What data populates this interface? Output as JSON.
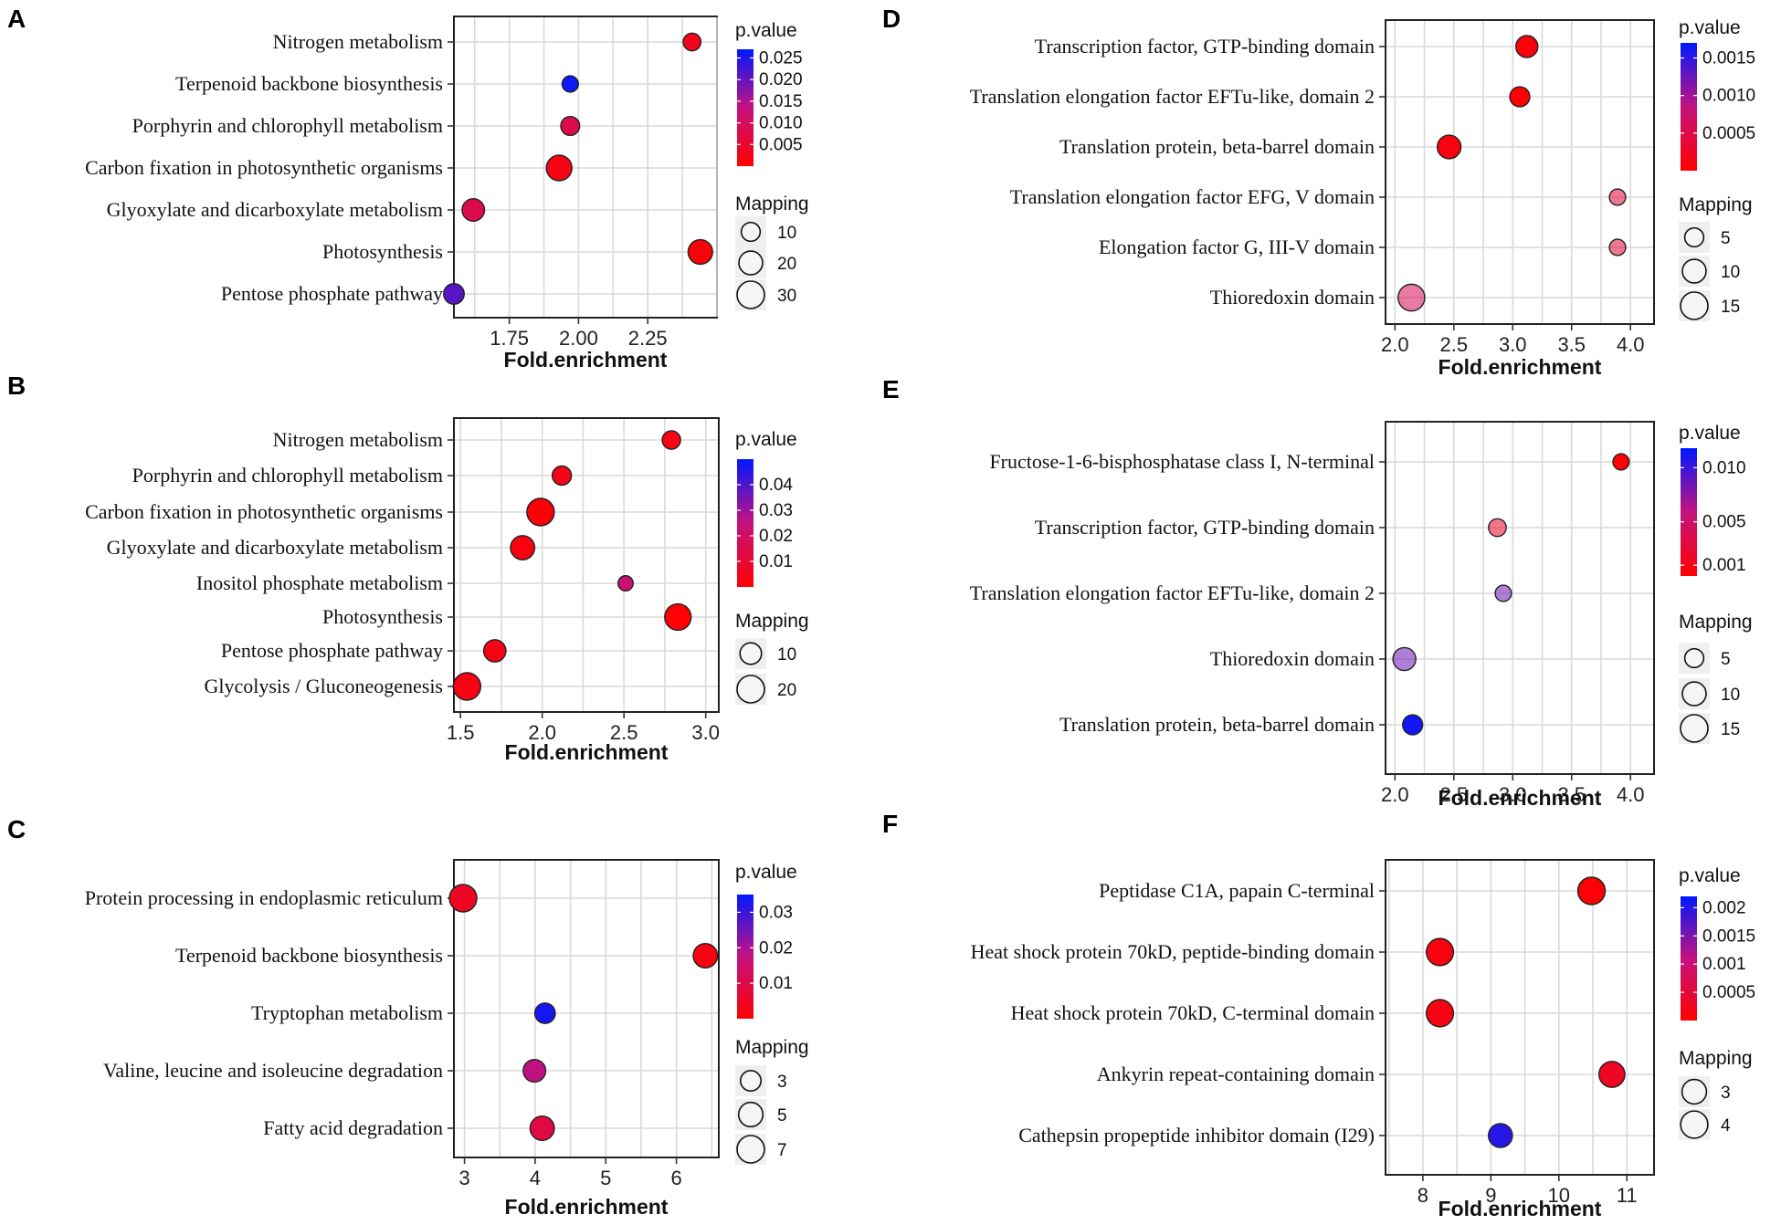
{
  "figure_title": "",
  "chart_data": [
    {
      "panel": "A",
      "type": "scatter",
      "xlabel": "Fold.enrichment",
      "ylabel": "",
      "xlim": [
        1.55,
        2.5
      ],
      "xticks": [
        1.75,
        2.0,
        2.25
      ],
      "xtick_labels": [
        "1.75",
        "2.00",
        "2.25"
      ],
      "categories": [
        "Nitrogen metabolism",
        "Terpenoid backbone biosynthesis",
        "Porphyrin and chlorophyll metabolism",
        "Carbon fixation in photosynthetic organisms",
        "Glyoxylate and dicarboxylate metabolism",
        "Photosynthesis",
        "Pentose phosphate pathway"
      ],
      "x": [
        2.41,
        1.97,
        1.97,
        1.93,
        1.62,
        2.44,
        1.55
      ],
      "mapping": [
        8,
        6,
        10,
        25,
        17,
        22,
        13
      ],
      "p_values": [
        0.003,
        0.026,
        0.008,
        0.002,
        0.008,
        0.001,
        0.021
      ],
      "color_legend": {
        "title": "p.value",
        "min": 0,
        "max": 0.027,
        "ticks": [
          0.025,
          0.02,
          0.015,
          0.01,
          0.005
        ],
        "tick_labels": [
          "0.025",
          "0.020",
          "0.015",
          "0.010",
          "0.005"
        ]
      },
      "size_legend": {
        "title": "Mapping",
        "ticks": [
          10,
          20,
          30
        ],
        "tick_labels": [
          "10",
          "20",
          "30"
        ]
      }
    },
    {
      "panel": "B",
      "type": "scatter",
      "xlabel": "Fold.enrichment",
      "ylabel": "",
      "xlim": [
        1.46,
        3.08
      ],
      "xticks": [
        1.5,
        2.0,
        2.5,
        3.0
      ],
      "xtick_labels": [
        "1.5",
        "2.0",
        "2.5",
        "3.0"
      ],
      "categories": [
        "Nitrogen metabolism",
        "Porphyrin and chlorophyll metabolism",
        "Carbon fixation in photosynthetic organisms",
        "Glyoxylate and dicarboxylate metabolism",
        "Inositol phosphate metabolism",
        "Photosynthesis",
        "Pentose phosphate pathway",
        "Glycolysis / Gluconeogenesis"
      ],
      "x": [
        2.79,
        2.12,
        1.99,
        1.88,
        2.51,
        2.83,
        1.71,
        1.54
      ],
      "mapping": [
        6,
        7,
        20,
        14,
        3,
        18,
        11,
        20
      ],
      "p_values": [
        0.004,
        0.005,
        0.002,
        0.003,
        0.022,
        0.001,
        0.004,
        0.004
      ],
      "color_legend": {
        "title": "p.value",
        "min": 0,
        "max": 0.05,
        "ticks": [
          0.04,
          0.03,
          0.02,
          0.01
        ],
        "tick_labels": [
          "0.04",
          "0.03",
          "0.02",
          "0.01"
        ]
      },
      "size_legend": {
        "title": "Mapping",
        "ticks": [
          10,
          20
        ],
        "tick_labels": [
          "10",
          "20"
        ]
      }
    },
    {
      "panel": "C",
      "type": "scatter",
      "xlabel": "Fold.enrichment",
      "ylabel": "",
      "xlim": [
        2.85,
        6.6
      ],
      "xticks": [
        3,
        4,
        5,
        6
      ],
      "xtick_labels": [
        "3",
        "4",
        "5",
        "6"
      ],
      "categories": [
        "Protein processing in endoplasmic reticulum",
        "Terpenoid backbone biosynthesis",
        "Tryptophan metabolism",
        "Valine, leucine and isoleucine degradation",
        "Fatty acid degradation"
      ],
      "x": [
        2.98,
        6.41,
        4.14,
        3.99,
        4.1
      ],
      "mapping": [
        7,
        5,
        3,
        4,
        5
      ],
      "p_values": [
        0.005,
        0.002,
        0.033,
        0.018,
        0.009
      ],
      "color_legend": {
        "title": "p.value",
        "min": 0,
        "max": 0.035,
        "ticks": [
          0.03,
          0.02,
          0.01
        ],
        "tick_labels": [
          "0.03",
          "0.02",
          "0.01"
        ]
      },
      "size_legend": {
        "title": "Mapping",
        "ticks": [
          3,
          5,
          7
        ],
        "tick_labels": [
          "3",
          "5",
          "7"
        ]
      }
    },
    {
      "panel": "D",
      "type": "scatter",
      "xlabel": "Fold.enrichment",
      "ylabel": "",
      "xlim": [
        1.92,
        4.2
      ],
      "xticks": [
        2.0,
        2.5,
        3.0,
        3.5,
        4.0
      ],
      "xtick_labels": [
        "2.0",
        "2.5",
        "3.0",
        "3.5",
        "4.0"
      ],
      "categories": [
        "Transcription factor, GTP-binding domain",
        "Translation elongation factor EFTu-like, domain 2",
        "Translation protein, beta-barrel domain",
        "Translation elongation factor EFG, V domain",
        "Elongation factor G, III-V domain",
        "Thioredoxin domain"
      ],
      "x": [
        3.12,
        3.06,
        2.46,
        3.89,
        3.89,
        2.14
      ],
      "mapping": [
        8,
        6,
        10,
        3,
        3,
        14
      ],
      "p_values": [
        8e-05,
        3e-05,
        0.0001,
        0.0004,
        0.0004,
        0.0006
      ],
      "color_legend": {
        "title": "p.value",
        "min": 0,
        "max": 0.0017,
        "ticks": [
          0.0015,
          0.001,
          0.0005
        ],
        "tick_labels": [
          "0.0015",
          "0.0010",
          "0.0005"
        ]
      },
      "size_legend": {
        "title": "Mapping",
        "ticks": [
          5,
          10,
          15
        ],
        "tick_labels": [
          "5",
          "10",
          "15"
        ]
      }
    },
    {
      "panel": "E",
      "type": "scatter",
      "xlabel": "Fold.enrichment",
      "ylabel": "",
      "xlim": [
        1.92,
        4.2
      ],
      "xticks": [
        2.0,
        2.5,
        3.0,
        3.5,
        4.0
      ],
      "xtick_labels": [
        "2.0",
        "2.5",
        "3.0",
        "3.5",
        "4.0"
      ],
      "categories": [
        "Fructose-1-6-bisphosphatase class I, N-terminal",
        "Transcription factor, GTP-binding domain",
        "Translation elongation factor EFTu-like, domain 2",
        "Thioredoxin domain",
        "Translation protein, beta-barrel domain"
      ],
      "x": [
        3.92,
        2.87,
        2.92,
        2.08,
        2.15
      ],
      "mapping": [
        3,
        4,
        3,
        9,
        6
      ],
      "p_values": [
        0.0002,
        0.002,
        0.0085,
        0.0085,
        0.0113
      ],
      "color_legend": {
        "title": "p.value",
        "min": 0,
        "max": 0.0118,
        "ticks": [
          0.01,
          0.005,
          0.001
        ],
        "tick_labels": [
          "0.010",
          "0.005",
          "0.001"
        ]
      },
      "size_legend": {
        "title": "Mapping",
        "ticks": [
          5,
          10,
          15
        ],
        "tick_labels": [
          "5",
          "10",
          "15"
        ]
      }
    },
    {
      "panel": "F",
      "type": "scatter",
      "xlabel": "Fold.enrichment",
      "ylabel": "",
      "xlim": [
        7.45,
        11.4
      ],
      "xticks": [
        8,
        9,
        10,
        11
      ],
      "xtick_labels": [
        "8",
        "9",
        "10",
        "11"
      ],
      "categories": [
        "Peptidase C1A, papain C-terminal",
        "Heat shock protein 70kD, peptide-binding domain",
        "Heat shock protein 70kD, C-terminal domain",
        "Ankyrin repeat-containing domain",
        "Cathepsin propeptide inhibitor domain (I29)"
      ],
      "x": [
        10.48,
        8.25,
        8.25,
        10.78,
        9.14
      ],
      "mapping": [
        4.1,
        4,
        4,
        3.5,
        2.8
      ],
      "p_values": [
        5e-05,
        0.00015,
        0.00015,
        0.0003,
        0.002
      ],
      "color_legend": {
        "title": "p.value",
        "min": 0,
        "max": 0.0022,
        "ticks": [
          0.002,
          0.0015,
          0.001,
          0.0005
        ],
        "tick_labels": [
          "0.002",
          "0.0015",
          "0.001",
          "0.0005"
        ]
      },
      "size_legend": {
        "title": "Mapping",
        "ticks": [
          3,
          4
        ],
        "tick_labels": [
          "3",
          "4"
        ]
      }
    }
  ],
  "colors": {
    "low_p": "#ff0000",
    "high_p": "#0018ff",
    "gridline": "#d9d9d9",
    "frame": "#222222"
  }
}
